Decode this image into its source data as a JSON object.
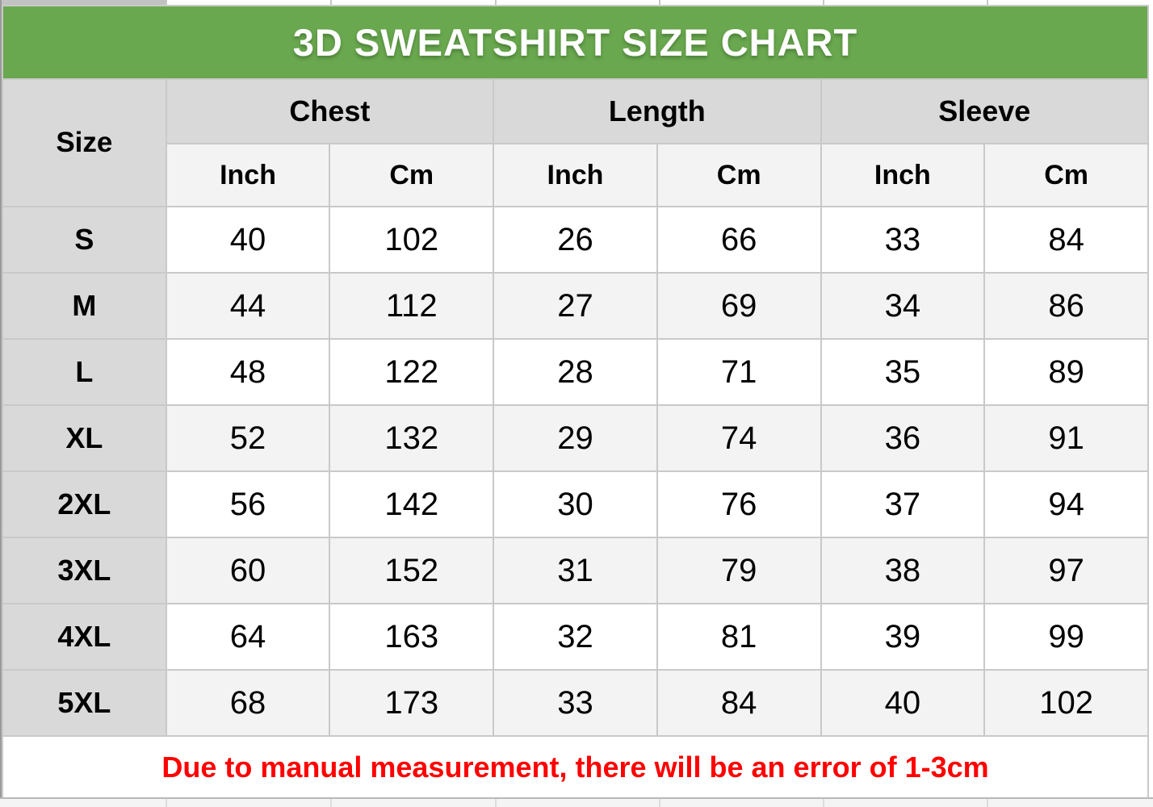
{
  "chart_data": {
    "type": "table",
    "title": "3D SWEATSHIRT SIZE CHART",
    "size_column_header": "Size",
    "groups": [
      {
        "label": "Chest",
        "units": [
          "Inch",
          "Cm"
        ]
      },
      {
        "label": "Length",
        "units": [
          "Inch",
          "Cm"
        ]
      },
      {
        "label": "Sleeve",
        "units": [
          "Inch",
          "Cm"
        ]
      }
    ],
    "columns": [
      "Size",
      "Chest Inch",
      "Chest Cm",
      "Length Inch",
      "Length Cm",
      "Sleeve Inch",
      "Sleeve Cm"
    ],
    "rows": [
      {
        "size": "S",
        "values": [
          40,
          102,
          26,
          66,
          33,
          84
        ]
      },
      {
        "size": "M",
        "values": [
          44,
          112,
          27,
          69,
          34,
          86
        ]
      },
      {
        "size": "L",
        "values": [
          48,
          122,
          28,
          71,
          35,
          89
        ]
      },
      {
        "size": "XL",
        "values": [
          52,
          132,
          29,
          74,
          36,
          91
        ]
      },
      {
        "size": "2XL",
        "values": [
          56,
          142,
          30,
          76,
          37,
          94
        ]
      },
      {
        "size": "3XL",
        "values": [
          60,
          152,
          31,
          79,
          38,
          97
        ]
      },
      {
        "size": "4XL",
        "values": [
          64,
          163,
          32,
          81,
          39,
          99
        ]
      },
      {
        "size": "5XL",
        "values": [
          68,
          173,
          33,
          84,
          40,
          102
        ]
      }
    ],
    "note": "Due to manual measurement, there will be an error of 1-3cm",
    "layout_hints": {
      "striped_rows": true,
      "grid": true
    }
  },
  "colors": {
    "banner_green": "#6aa84f",
    "header_gray": "#d9d9d9",
    "stripe_gray": "#f3f3f3",
    "border_gray": "#c9c9c9",
    "note_red": "#ff0000",
    "title_white": "#ffffff"
  }
}
